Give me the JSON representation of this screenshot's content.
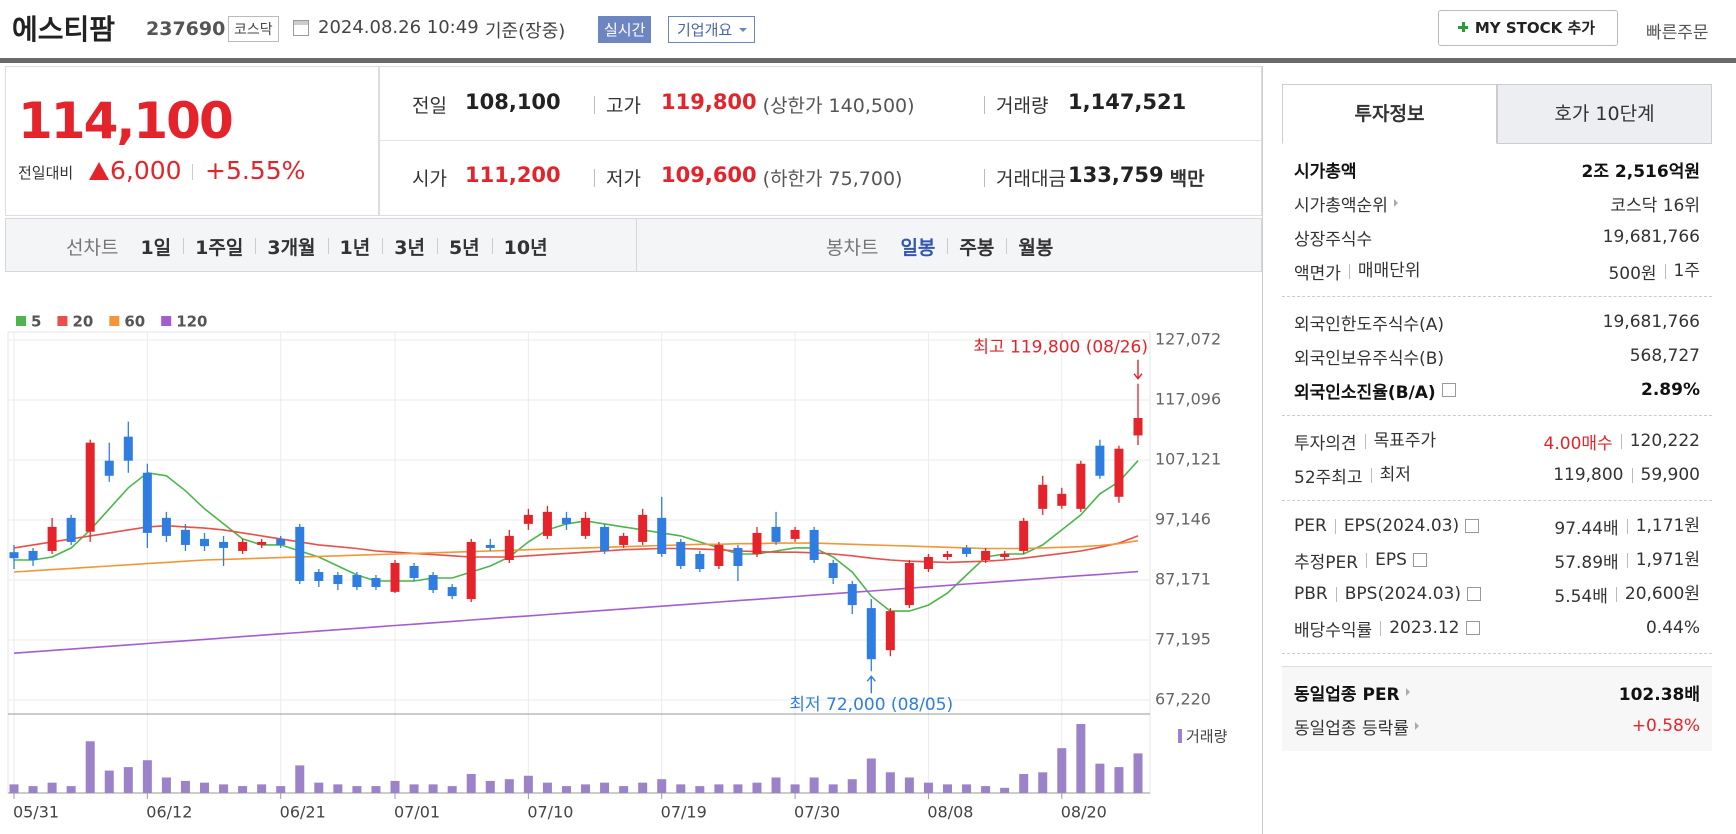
{
  "header": {
    "name": "에스티팜",
    "code": "237690",
    "market": "코스닥",
    "datetime": "2024.08.26 10:49",
    "basis": "기준(장중)",
    "realtime": "실시간",
    "company": "기업개요",
    "mystock": "MY STOCK 추가",
    "quick_order": "빠른주문"
  },
  "price": {
    "current": "114,100",
    "change_label": "전일대비",
    "change": "6,000",
    "rate": "+5.55%"
  },
  "stats": [
    {
      "label": "전일",
      "value": "108,100"
    },
    {
      "label": "고가",
      "value": "119,800",
      "extra": "(상한가 140,500)"
    },
    {
      "label": "거래량",
      "value": "1,147,521"
    },
    {
      "label": "시가",
      "value": "111,200"
    },
    {
      "label": "저가",
      "value": "109,600",
      "extra": "(하한가 75,700)"
    },
    {
      "label": "거래대금",
      "value": "133,759",
      "unit": "백만"
    }
  ],
  "chart_tabs": {
    "line_label": "선차트",
    "line_periods": [
      "1일",
      "1주일",
      "3개월",
      "1년",
      "3년",
      "5년",
      "10년"
    ],
    "candle_label": "봉차트",
    "candle_periods": [
      "일봉",
      "주봉",
      "월봉"
    ]
  },
  "chart_data": {
    "type": "candlestick",
    "categories": [
      "05/31",
      null,
      null,
      null,
      null,
      null,
      null,
      "06/12",
      null,
      null,
      null,
      null,
      null,
      null,
      "06/21",
      null,
      null,
      null,
      null,
      null,
      "07/01",
      null,
      null,
      null,
      null,
      null,
      null,
      "07/10",
      null,
      null,
      null,
      null,
      null,
      null,
      "07/19",
      null,
      null,
      null,
      null,
      null,
      null,
      "07/30",
      null,
      null,
      null,
      null,
      null,
      null,
      "08/08",
      null,
      null,
      null,
      null,
      null,
      null,
      "08/20",
      null,
      null,
      null,
      null
    ],
    "open": [
      91800,
      92000,
      92000,
      97500,
      95200,
      107000,
      111000,
      105000,
      97500,
      95500,
      94000,
      93500,
      92000,
      93000,
      94000,
      96000,
      88500,
      88000,
      88000,
      87500,
      85200,
      89500,
      88000,
      86000,
      84000,
      93000,
      90500,
      96500,
      94500,
      97500,
      94500,
      96000,
      93000,
      93500,
      97500,
      93500,
      91500,
      89500,
      92500,
      91500,
      96000,
      94000,
      95500,
      90000,
      86500,
      82500,
      75500,
      83000,
      89000,
      91000,
      92500,
      90500,
      91000,
      92000,
      99000,
      99500,
      99000,
      109500,
      101000,
      111200
    ],
    "high": [
      93000,
      92500,
      97500,
      98000,
      110500,
      110000,
      113500,
      106500,
      98500,
      96500,
      95000,
      94500,
      94000,
      94000,
      94500,
      96500,
      89000,
      88500,
      88500,
      88000,
      90500,
      90000,
      88500,
      86500,
      94000,
      94000,
      95500,
      99000,
      99500,
      98500,
      98500,
      96500,
      95000,
      99000,
      101000,
      94000,
      92000,
      93500,
      93000,
      96000,
      98500,
      96000,
      96000,
      90500,
      87000,
      84000,
      82500,
      90500,
      91500,
      92000,
      93000,
      92500,
      92000,
      97500,
      104500,
      102500,
      107000,
      110500,
      109500,
      119800
    ],
    "low": [
      89000,
      89500,
      91500,
      93000,
      93500,
      103500,
      105000,
      92500,
      93500,
      92000,
      92000,
      89500,
      91500,
      92500,
      92500,
      86500,
      86000,
      85500,
      85500,
      85500,
      85000,
      87000,
      85000,
      84000,
      83500,
      92000,
      90000,
      95500,
      94000,
      95500,
      94000,
      91500,
      92500,
      93000,
      91000,
      89000,
      88500,
      89000,
      87000,
      91000,
      93000,
      93500,
      90000,
      86500,
      81500,
      72000,
      74500,
      82500,
      88500,
      90500,
      91000,
      90000,
      90500,
      91500,
      98000,
      99000,
      98500,
      104000,
      100000,
      109600
    ],
    "close": [
      90800,
      90500,
      96000,
      93500,
      110000,
      104500,
      107000,
      95000,
      94500,
      93000,
      92800,
      92500,
      93500,
      93500,
      93000,
      87000,
      87000,
      86500,
      86000,
      86000,
      90000,
      87500,
      85500,
      84500,
      93500,
      92500,
      94500,
      98000,
      98500,
      96500,
      97500,
      92000,
      94500,
      98000,
      91500,
      89500,
      89000,
      93000,
      89500,
      95000,
      93500,
      95500,
      90500,
      87500,
      83000,
      74000,
      82000,
      90000,
      91000,
      91500,
      91500,
      92000,
      91500,
      97000,
      103000,
      101500,
      106500,
      104500,
      109000,
      114100
    ],
    "up_color": "#e5232b",
    "down_color": "#2f7de1",
    "series": [
      {
        "name": "5",
        "color": "#4cb64c",
        "values": [
          90500,
          90500,
          91000,
          92500,
          95500,
          99000,
          102500,
          105000,
          104500,
          102000,
          99000,
          96500,
          94000,
          93000,
          93000,
          92000,
          91000,
          89500,
          88000,
          87000,
          87000,
          87000,
          87500,
          87500,
          88500,
          89500,
          91000,
          93500,
          95500,
          96500,
          97000,
          96500,
          96000,
          95500,
          95000,
          94500,
          93500,
          92500,
          91500,
          91500,
          92000,
          92500,
          92500,
          91000,
          88500,
          84500,
          82000,
          82000,
          83000,
          85000,
          88000,
          91000,
          91500,
          91500,
          93000,
          95500,
          98000,
          101500,
          103500,
          107000
        ]
      },
      {
        "name": "20",
        "color": "#e8504b",
        "values": [
          92500,
          93000,
          93500,
          94000,
          94500,
          95000,
          95500,
          96000,
          96200,
          96000,
          95800,
          95500,
          95000,
          94500,
          94000,
          93500,
          93000,
          92700,
          92400,
          92000,
          91800,
          91600,
          91400,
          91200,
          91000,
          91000,
          91000,
          91200,
          91400,
          91600,
          91800,
          92000,
          92200,
          92300,
          92400,
          92400,
          92300,
          92200,
          92000,
          91900,
          91800,
          91800,
          91700,
          91500,
          91200,
          90800,
          90500,
          90300,
          90200,
          90100,
          90200,
          90300,
          90500,
          90800,
          91200,
          91600,
          92000,
          92600,
          93300,
          94500
        ]
      },
      {
        "name": "60",
        "color": "#f29738",
        "values": [
          88500,
          88700,
          88900,
          89100,
          89300,
          89500,
          89700,
          89900,
          90100,
          90300,
          90500,
          90600,
          90700,
          90800,
          90900,
          91000,
          91100,
          91200,
          91300,
          91400,
          91500,
          91600,
          91700,
          91800,
          91900,
          92000,
          92100,
          92200,
          92300,
          92400,
          92500,
          92600,
          92700,
          92800,
          92900,
          93000,
          93100,
          93100,
          93200,
          93200,
          93300,
          93300,
          93300,
          93200,
          93100,
          93000,
          92900,
          92800,
          92700,
          92600,
          92500,
          92400,
          92400,
          92400,
          92500,
          92600,
          92700,
          92900,
          93200,
          93700
        ]
      },
      {
        "name": "120",
        "color": "#a45dd1",
        "values": [
          75000,
          75230,
          75460,
          75690,
          75920,
          76150,
          76380,
          76610,
          76840,
          77070,
          77300,
          77530,
          77760,
          77990,
          78220,
          78450,
          78680,
          78910,
          79140,
          79370,
          79600,
          79830,
          80060,
          80290,
          80520,
          80750,
          80980,
          81210,
          81440,
          81670,
          81900,
          82130,
          82360,
          82590,
          82820,
          83050,
          83280,
          83510,
          83740,
          83970,
          84200,
          84430,
          84660,
          84890,
          85120,
          85350,
          85580,
          85810,
          86040,
          86270,
          86500,
          86730,
          86960,
          87190,
          87420,
          87650,
          87880,
          88110,
          88340,
          88570
        ]
      }
    ],
    "volume": {
      "name": "거래량",
      "color": "#9b82c9",
      "ylim": [
        0,
        2000000
      ],
      "values": [
        250000,
        200000,
        300000,
        200000,
        1500000,
        650000,
        750000,
        950000,
        450000,
        350000,
        300000,
        250000,
        200000,
        250000,
        200000,
        800000,
        300000,
        250000,
        200000,
        200000,
        350000,
        250000,
        250000,
        200000,
        550000,
        350000,
        400000,
        500000,
        300000,
        200000,
        250000,
        300000,
        200000,
        300000,
        400000,
        250000,
        200000,
        250000,
        250000,
        300000,
        450000,
        250000,
        450000,
        250000,
        400000,
        1000000,
        600000,
        450000,
        300000,
        250000,
        250000,
        200000,
        150000,
        550000,
        600000,
        1300000,
        2000000,
        850000,
        750000,
        1147521
      ]
    },
    "ylim": [
      67220,
      127072
    ],
    "yticks": [
      {
        "value": 67220,
        "label": "67,220"
      },
      {
        "value": 77195,
        "label": "77,195"
      },
      {
        "value": 87171,
        "label": "87,171"
      },
      {
        "value": 97146,
        "label": "97,146"
      },
      {
        "value": 107121,
        "label": "107,121"
      },
      {
        "value": 117096,
        "label": "117,096"
      },
      {
        "value": 127072,
        "label": "127,072"
      }
    ],
    "grid": true,
    "high_label": "최고 119,800 (08/26)",
    "low_label": "최저 72,000 (08/05)"
  },
  "info": {
    "tabs": [
      "투자정보",
      "호가 10단계"
    ],
    "groups": [
      {
        "rows": [
          {
            "label": "시가총액",
            "value": "2조 2,516억원"
          },
          {
            "label": "시가총액순위",
            "value": "코스닥 16위"
          },
          {
            "label": "상장주식수",
            "value": "19,681,766"
          },
          {
            "label": "액면가",
            "label2": "매매단위",
            "value": "500원",
            "value2": "1주"
          }
        ]
      },
      {
        "rows": [
          {
            "label": "외국인한도주식수(A)",
            "value": "19,681,766"
          },
          {
            "label": "외국인보유주식수(B)",
            "value": "568,727"
          },
          {
            "label": "외국인소진율(B/A)",
            "value": "2.89%"
          }
        ]
      },
      {
        "rows": [
          {
            "label": "투자의견",
            "label2": "목표주가",
            "value": "4.00매수",
            "value2": "120,222"
          },
          {
            "label": "52주최고",
            "label2": "최저",
            "value": "119,800",
            "value2": "59,900"
          }
        ]
      },
      {
        "rows": [
          {
            "label": "PER",
            "label2": "EPS(2024.03)",
            "value": "97.44배",
            "value2": "1,171원"
          },
          {
            "label": "추정PER",
            "label2": "EPS",
            "value": "57.89배",
            "value2": "1,971원"
          },
          {
            "label": "PBR",
            "label2": "BPS(2024.03)",
            "value": "5.54배",
            "value2": "20,600원"
          },
          {
            "label": "배당수익률",
            "label2": "2023.12",
            "value": "0.44%"
          }
        ]
      },
      {
        "rows": [
          {
            "label": "동일업종 PER",
            "value": "102.38배"
          },
          {
            "label": "동일업종 등락률",
            "value": "+0.58%"
          }
        ]
      }
    ]
  }
}
